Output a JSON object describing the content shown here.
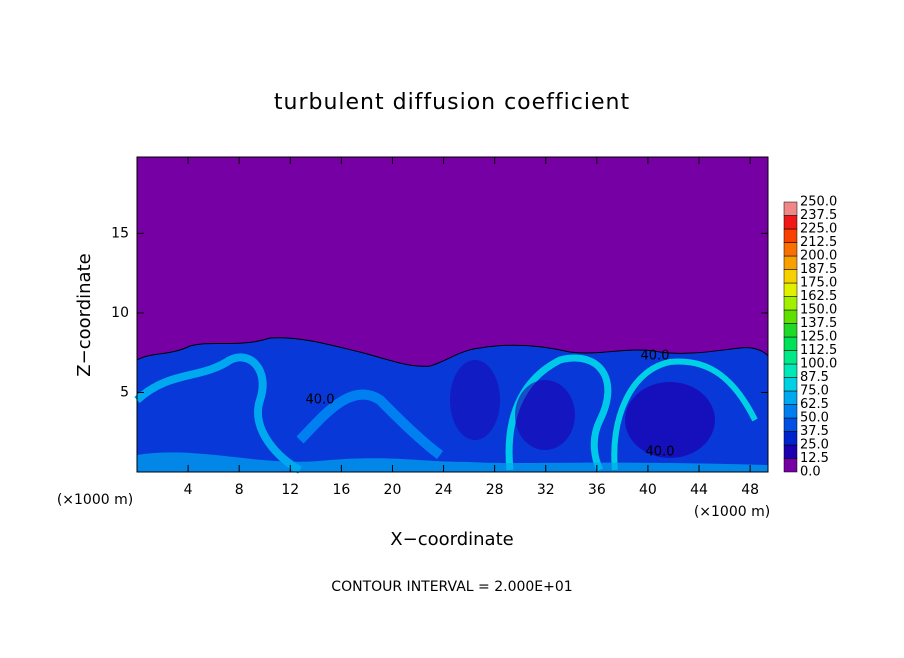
{
  "chart_data": {
    "type": "contour",
    "title": "turbulent diffusion coefficient",
    "xlabel": "X−coordinate",
    "ylabel": "Z−coordinate",
    "x_unit_left": "(×1000 m)",
    "x_unit_right": "(×1000 m)",
    "note": "CONTOUR INTERVAL = 2.000E+01",
    "xlim": [
      0,
      49.4
    ],
    "xticks": [
      4,
      8,
      12,
      16,
      20,
      24,
      28,
      32,
      36,
      40,
      44,
      48
    ],
    "ylim": [
      0,
      19.8
    ],
    "yticks": [
      5,
      10,
      15
    ],
    "colorbar": {
      "levels": [
        {
          "value": 0,
          "label": "0.0"
        },
        {
          "value": 12.5,
          "label": "12.5"
        },
        {
          "value": 25,
          "label": "25.0"
        },
        {
          "value": 37.5,
          "label": "37.5"
        },
        {
          "value": 50,
          "label": "50.0"
        },
        {
          "value": 62.5,
          "label": "62.5"
        },
        {
          "value": 75,
          "label": "75.0"
        },
        {
          "value": 87.5,
          "label": "87.5"
        },
        {
          "value": 100,
          "label": "100.0"
        },
        {
          "value": 112.5,
          "label": "112.5"
        },
        {
          "value": 125,
          "label": "125.0"
        },
        {
          "value": 137.5,
          "label": "137.5"
        },
        {
          "value": 150,
          "label": "150.0"
        },
        {
          "value": 162.5,
          "label": "162.5"
        },
        {
          "value": 175,
          "label": "175.0"
        },
        {
          "value": 187.5,
          "label": "187.5"
        },
        {
          "value": 200,
          "label": "200.0"
        },
        {
          "value": 212.5,
          "label": "212.5"
        },
        {
          "value": 225,
          "label": "225.0"
        },
        {
          "value": 237.5,
          "label": "237.5"
        },
        {
          "value": 250,
          "label": "250.0"
        }
      ],
      "colors": [
        "#7700a4",
        "#1c00b0",
        "#0024cc",
        "#0050e4",
        "#0080f0",
        "#00a8f0",
        "#00d0e4",
        "#00e8b8",
        "#00e888",
        "#00e058",
        "#20d828",
        "#60e000",
        "#a0f000",
        "#e0f000",
        "#f8d000",
        "#f8a000",
        "#f87000",
        "#f84000",
        "#f01818",
        "#f08888"
      ]
    },
    "contour_labels": [
      {
        "value": 40,
        "label": "40.0"
      },
      {
        "value": 40,
        "label": "40.0"
      },
      {
        "value": 40,
        "label": "40.0"
      }
    ]
  }
}
